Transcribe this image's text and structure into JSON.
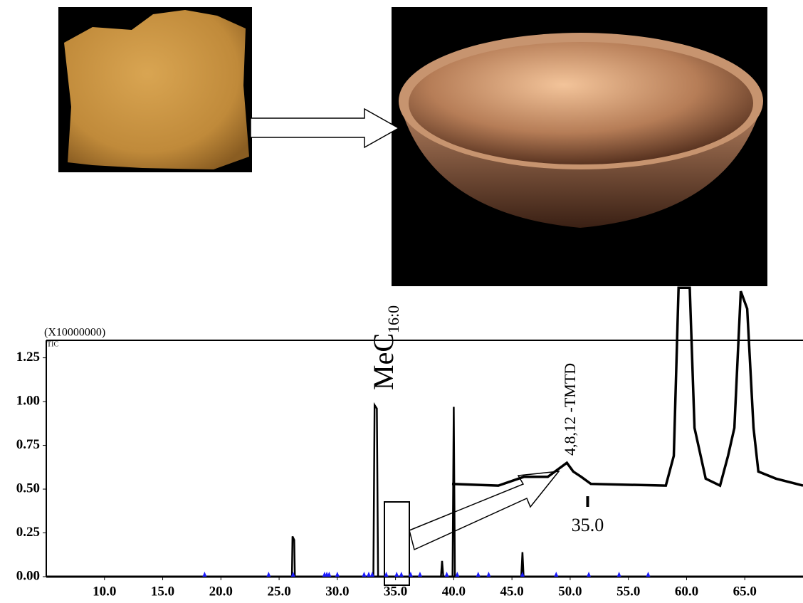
{
  "chart_data": [
    {
      "type": "line",
      "multiplier_label": "(X10000000)",
      "signal_label": "TIC",
      "annotations": [
        {
          "text": "MeC",
          "subscript": "16:0"
        }
      ],
      "xlim": [
        5,
        70
      ],
      "xticks": [
        {
          "value": 10,
          "label": "10.0"
        },
        {
          "value": 15,
          "label": "15.0"
        },
        {
          "value": 20,
          "label": "20.0"
        },
        {
          "value": 25,
          "label": "25.0"
        },
        {
          "value": 30,
          "label": "30.0"
        },
        {
          "value": 35,
          "label": "35.0"
        },
        {
          "value": 40,
          "label": "40.0"
        },
        {
          "value": 45,
          "label": "45.0"
        },
        {
          "value": 50,
          "label": "50.0"
        },
        {
          "value": 55,
          "label": "55.0"
        },
        {
          "value": 60,
          "label": "60.0"
        },
        {
          "value": 65,
          "label": "65.0"
        }
      ],
      "ylim": [
        0,
        1.35
      ],
      "yticks": [
        {
          "value": 0,
          "label": "0.00"
        },
        {
          "value": 0.25,
          "label": "0.25"
        },
        {
          "value": 0.5,
          "label": "0.50"
        },
        {
          "value": 0.75,
          "label": "0.75"
        },
        {
          "value": 1,
          "label": "1.00"
        },
        {
          "value": 1.25,
          "label": "1.25"
        }
      ],
      "series": [
        {
          "color": "#000000",
          "x": [
            5,
            26.1,
            26.15,
            26.3,
            26.35,
            33.1,
            33.2,
            33.4,
            33.5,
            38.9,
            39.0,
            39.1,
            39.9,
            40.0,
            40.1,
            45.8,
            45.9,
            46.0,
            70
          ],
          "values": [
            0,
            0,
            0.23,
            0.21,
            0,
            0,
            0.98,
            0.96,
            0,
            0,
            0.09,
            0,
            0,
            0.97,
            0,
            0,
            0.14,
            0,
            0
          ]
        }
      ],
      "markers": {
        "color": "#1a1aff",
        "x": [
          18.6,
          24.1,
          26.2,
          28.9,
          29.1,
          29.3,
          30.0,
          32.3,
          32.7,
          33.0,
          34.2,
          35.1,
          35.5,
          36.3,
          37.1,
          39.4,
          40.3,
          42.1,
          43.0,
          45.9,
          48.8,
          51.6,
          54.2,
          56.7
        ]
      }
    },
    {
      "type": "line",
      "annotations": [
        {
          "text": "4,8,12 -TMTD"
        }
      ],
      "xlim": [
        34.15,
        36.35
      ],
      "xticks": [
        {
          "value": 35,
          "label": "35.0"
        }
      ],
      "ylim": [
        0,
        1.35
      ],
      "series": [
        {
          "color": "#000000",
          "x": [
            34.15,
            34.44,
            34.6,
            34.75,
            34.87,
            34.91,
            34.96,
            35.02,
            35.49,
            35.54,
            35.57,
            35.64,
            35.67,
            35.74,
            35.83,
            35.88,
            35.92,
            35.96,
            36.0,
            36.04,
            36.07,
            36.18,
            36.35
          ],
          "values": [
            0.53,
            0.52,
            0.57,
            0.57,
            0.65,
            0.6,
            0.57,
            0.53,
            0.52,
            0.69,
            1.65,
            1.65,
            0.85,
            0.56,
            0.52,
            0.69,
            0.85,
            1.63,
            1.53,
            0.85,
            0.6,
            0.56,
            0.52
          ]
        }
      ]
    }
  ]
}
